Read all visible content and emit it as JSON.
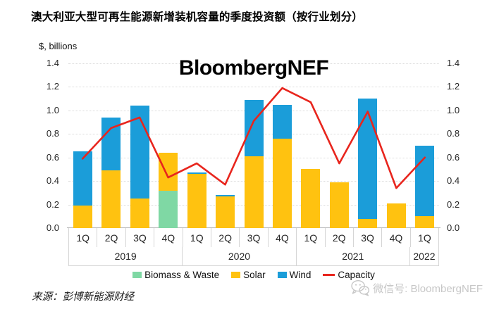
{
  "header": {
    "title": "澳大利亚大型可再生能源新增装机容量的季度投资额（按行业划分）"
  },
  "watermark": "BloombergNEF",
  "footer": {
    "source": "来源：彭博新能源财经",
    "wechat_label": "微信号: BloombergNEF",
    "wechat_icon": "wechat-icon"
  },
  "chart_data": {
    "type": "bar",
    "subtype": "stacked-bar-with-line",
    "title": "澳大利亚大型可再生能源新增装机容量的季度投资额（按行业划分）",
    "unit_label": "$, billions",
    "categories": [
      "1Q",
      "2Q",
      "3Q",
      "4Q",
      "1Q",
      "2Q",
      "3Q",
      "4Q",
      "1Q",
      "2Q",
      "3Q",
      "4Q",
      "1Q"
    ],
    "year_groups": [
      {
        "label": "2019",
        "span": 4
      },
      {
        "label": "2020",
        "span": 4
      },
      {
        "label": "2021",
        "span": 4
      },
      {
        "label": "2022",
        "span": 1
      }
    ],
    "series": [
      {
        "name": "Biomass & Waste",
        "type": "bar",
        "color": "#7fd8a4",
        "values": [
          0,
          0,
          0,
          0.32,
          0,
          0,
          0,
          0,
          0,
          0,
          0,
          0,
          0
        ]
      },
      {
        "name": "Solar",
        "type": "bar",
        "color": "#ffc210",
        "values": [
          0.19,
          0.49,
          0.25,
          0.32,
          0.46,
          0.27,
          0.61,
          0.76,
          0.5,
          0.39,
          0.08,
          0.21,
          0.1
        ]
      },
      {
        "name": "Wind",
        "type": "bar",
        "color": "#1b9dd9",
        "values": [
          0.46,
          0.45,
          0.79,
          0,
          0.01,
          0.01,
          0.48,
          0.29,
          0,
          0,
          1.02,
          0,
          0.6
        ]
      },
      {
        "name": "Capacity",
        "type": "line",
        "color": "#e8251d",
        "values": [
          0.59,
          0.85,
          0.94,
          0.43,
          0.55,
          0.37,
          0.91,
          1.19,
          1.07,
          0.55,
          0.99,
          0.34,
          0.6
        ]
      }
    ],
    "legend": {
      "biomass": "Biomass & Waste",
      "solar": "Solar",
      "wind": "Wind",
      "capacity": "Capacity"
    },
    "ylim": [
      0,
      1.4
    ],
    "yticks": [
      "0.0",
      "0.2",
      "0.4",
      "0.6",
      "0.8",
      "1.0",
      "1.2",
      "1.4"
    ],
    "grid": true,
    "legend_position": "bottom",
    "axis_color": "#b9b9b9"
  }
}
